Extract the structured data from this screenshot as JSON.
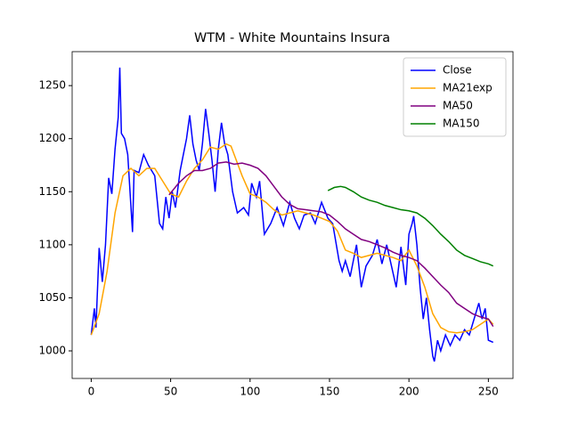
{
  "chart_data": {
    "type": "line",
    "title": "WTM - White Mountains Insura",
    "legend": "upper right",
    "xlim": [
      -12,
      265.5
    ],
    "ylim": [
      974,
      1282
    ],
    "xticks": [
      0,
      50,
      100,
      150,
      200,
      250
    ],
    "yticks": [
      1000,
      1050,
      1100,
      1150,
      1200,
      1250
    ],
    "series": [
      {
        "name": "Close",
        "color": "#0000ff",
        "x": [
          0,
          2,
          3,
          5,
          7,
          9,
          11,
          13,
          15,
          17,
          18,
          19,
          21,
          23,
          26,
          27,
          30,
          33,
          36,
          40,
          43,
          45,
          47,
          49,
          51,
          53,
          56,
          58,
          60,
          62,
          64,
          66,
          68,
          70,
          72,
          74,
          76,
          78,
          80,
          82,
          84,
          86,
          89,
          92,
          96,
          99,
          101,
          104,
          106,
          109,
          113,
          117,
          121,
          125,
          128,
          131,
          134,
          138,
          141,
          145,
          149,
          152,
          156,
          158,
          160,
          163,
          167,
          170,
          173,
          177,
          180,
          183,
          186,
          189,
          192,
          195,
          198,
          200,
          202,
          203,
          205,
          207,
          209,
          211,
          213,
          215,
          216,
          218,
          220,
          223,
          226,
          229,
          232,
          235,
          238,
          241,
          244,
          246,
          248,
          250,
          253
        ],
        "values": [
          1015,
          1040,
          1022,
          1097,
          1065,
          1100,
          1163,
          1148,
          1190,
          1220,
          1267,
          1205,
          1200,
          1185,
          1112,
          1170,
          1168,
          1185,
          1175,
          1165,
          1120,
          1115,
          1145,
          1125,
          1150,
          1135,
          1170,
          1185,
          1200,
          1222,
          1195,
          1180,
          1170,
          1195,
          1228,
          1205,
          1180,
          1150,
          1190,
          1215,
          1195,
          1185,
          1150,
          1130,
          1135,
          1128,
          1158,
          1145,
          1160,
          1110,
          1120,
          1135,
          1118,
          1140,
          1125,
          1115,
          1128,
          1130,
          1120,
          1140,
          1125,
          1120,
          1085,
          1075,
          1085,
          1070,
          1100,
          1060,
          1080,
          1090,
          1105,
          1082,
          1100,
          1080,
          1060,
          1098,
          1062,
          1110,
          1120,
          1127,
          1100,
          1060,
          1030,
          1050,
          1020,
          995,
          990,
          1010,
          1000,
          1015,
          1005,
          1015,
          1010,
          1020,
          1015,
          1030,
          1045,
          1030,
          1040,
          1010,
          1008
        ]
      },
      {
        "name": "MA21exp",
        "color": "#ffa500",
        "x": [
          0,
          5,
          10,
          15,
          20,
          25,
          30,
          35,
          40,
          45,
          50,
          55,
          60,
          65,
          70,
          75,
          80,
          85,
          88,
          90,
          95,
          100,
          105,
          110,
          115,
          120,
          125,
          130,
          135,
          140,
          145,
          150,
          155,
          160,
          165,
          170,
          175,
          180,
          185,
          190,
          195,
          200,
          205,
          210,
          215,
          220,
          225,
          230,
          235,
          240,
          245,
          250,
          253
        ],
        "values": [
          1015,
          1035,
          1075,
          1130,
          1165,
          1172,
          1165,
          1172,
          1172,
          1160,
          1148,
          1145,
          1160,
          1172,
          1180,
          1192,
          1190,
          1195,
          1193,
          1185,
          1165,
          1148,
          1145,
          1140,
          1133,
          1128,
          1130,
          1132,
          1130,
          1128,
          1125,
          1122,
          1113,
          1095,
          1092,
          1088,
          1090,
          1092,
          1090,
          1088,
          1085,
          1095,
          1080,
          1060,
          1035,
          1022,
          1018,
          1017,
          1018,
          1020,
          1025,
          1030,
          1025
        ]
      },
      {
        "name": "MA50",
        "color": "#800080",
        "x": [
          49,
          55,
          60,
          65,
          70,
          75,
          80,
          85,
          90,
          95,
          100,
          105,
          110,
          115,
          120,
          125,
          130,
          135,
          140,
          145,
          150,
          155,
          160,
          165,
          170,
          175,
          180,
          185,
          190,
          195,
          200,
          205,
          210,
          215,
          220,
          225,
          230,
          235,
          240,
          245,
          250,
          253
        ],
        "values": [
          1147,
          1158,
          1165,
          1170,
          1170,
          1172,
          1177,
          1178,
          1176,
          1177,
          1175,
          1172,
          1165,
          1155,
          1145,
          1138,
          1134,
          1133,
          1132,
          1131,
          1128,
          1122,
          1115,
          1110,
          1105,
          1103,
          1100,
          1097,
          1093,
          1090,
          1088,
          1085,
          1078,
          1070,
          1062,
          1055,
          1045,
          1040,
          1035,
          1032,
          1030,
          1023
        ]
      },
      {
        "name": "MA150",
        "color": "#008000",
        "x": [
          149,
          153,
          157,
          160,
          165,
          170,
          175,
          180,
          185,
          190,
          195,
          200,
          205,
          210,
          215,
          220,
          225,
          230,
          235,
          240,
          245,
          250,
          253
        ],
        "values": [
          1151,
          1154,
          1155,
          1154,
          1150,
          1145,
          1142,
          1140,
          1137,
          1135,
          1133,
          1132,
          1130,
          1125,
          1118,
          1110,
          1103,
          1095,
          1090,
          1087,
          1084,
          1082,
          1080
        ]
      }
    ]
  }
}
